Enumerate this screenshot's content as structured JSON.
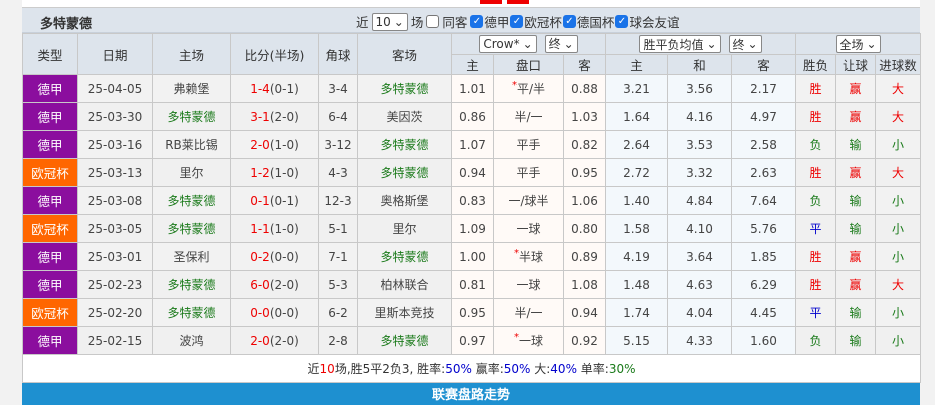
{
  "title": "多特蒙德",
  "filters": {
    "recent_prefix": "近",
    "recent_value": "10",
    "recent_suffix": "场",
    "same_home_label": "同客",
    "same_home_checked": false,
    "leagues": [
      {
        "label": "德甲",
        "checked": true
      },
      {
        "label": "欧冠杯",
        "checked": true
      },
      {
        "label": "德国杯",
        "checked": true
      },
      {
        "label": "球会友谊",
        "checked": true
      }
    ]
  },
  "headers": {
    "type": "类型",
    "date": "日期",
    "home": "主场",
    "score": "比分(半场)",
    "corner": "角球",
    "away": "客场",
    "ah_company": "Crow*",
    "ah_stage": "终",
    "eu_company": "胜平负均值",
    "eu_stage": "终",
    "scope": "全场",
    "sub": [
      "主",
      "盘口",
      "客",
      "主",
      "和",
      "客",
      "胜负",
      "让球",
      "进球数"
    ]
  },
  "colors": {
    "德甲": "#8b0e9e",
    "欧冠杯": "#ff6600",
    "team": "#1a7a1a",
    "red": "#e00000",
    "blue": "#0000cc"
  },
  "rows": [
    {
      "type": "德甲",
      "date": "25-04-05",
      "home": "弗赖堡",
      "score": "1-4",
      "half": "(0-1)",
      "corner": "3-4",
      "away": "多特蒙德",
      "ah_h": "1.01",
      "ah_line": "平/半",
      "ah_star": true,
      "ah_a": "0.88",
      "eu_h": "3.21",
      "eu_d": "3.56",
      "eu_a": "2.17",
      "res": "胜",
      "ah_res": "赢",
      "ou": "大"
    },
    {
      "type": "德甲",
      "date": "25-03-30",
      "home": "多特蒙德",
      "score": "3-1",
      "half": "(2-0)",
      "corner": "6-4",
      "away": "美因茨",
      "ah_h": "0.86",
      "ah_line": "半/一",
      "ah_star": false,
      "ah_a": "1.03",
      "eu_h": "1.64",
      "eu_d": "4.16",
      "eu_a": "4.97",
      "res": "胜",
      "ah_res": "赢",
      "ou": "大"
    },
    {
      "type": "德甲",
      "date": "25-03-16",
      "home": "RB莱比锡",
      "score": "2-0",
      "half": "(1-0)",
      "corner": "3-12",
      "away": "多特蒙德",
      "ah_h": "1.07",
      "ah_line": "平手",
      "ah_star": false,
      "ah_a": "0.82",
      "eu_h": "2.64",
      "eu_d": "3.53",
      "eu_a": "2.58",
      "res": "负",
      "ah_res": "输",
      "ou": "小"
    },
    {
      "type": "欧冠杯",
      "date": "25-03-13",
      "home": "里尔",
      "score": "1-2",
      "half": "(1-0)",
      "corner": "4-3",
      "away": "多特蒙德",
      "ah_h": "0.94",
      "ah_line": "平手",
      "ah_star": false,
      "ah_a": "0.95",
      "eu_h": "2.72",
      "eu_d": "3.32",
      "eu_a": "2.63",
      "res": "胜",
      "ah_res": "赢",
      "ou": "大"
    },
    {
      "type": "德甲",
      "date": "25-03-08",
      "home": "多特蒙德",
      "score": "0-1",
      "half": "(0-1)",
      "corner": "12-3",
      "away": "奥格斯堡",
      "ah_h": "0.83",
      "ah_line": "一/球半",
      "ah_star": false,
      "ah_a": "1.06",
      "eu_h": "1.40",
      "eu_d": "4.84",
      "eu_a": "7.64",
      "res": "负",
      "ah_res": "输",
      "ou": "小"
    },
    {
      "type": "欧冠杯",
      "date": "25-03-05",
      "home": "多特蒙德",
      "score": "1-1",
      "half": "(1-0)",
      "corner": "5-1",
      "away": "里尔",
      "ah_h": "1.09",
      "ah_line": "一球",
      "ah_star": false,
      "ah_a": "0.80",
      "eu_h": "1.58",
      "eu_d": "4.10",
      "eu_a": "5.76",
      "res": "平",
      "ah_res": "输",
      "ou": "小"
    },
    {
      "type": "德甲",
      "date": "25-03-01",
      "home": "圣保利",
      "score": "0-2",
      "half": "(0-0)",
      "corner": "7-1",
      "away": "多特蒙德",
      "ah_h": "1.00",
      "ah_line": "半球",
      "ah_star": true,
      "ah_a": "0.89",
      "eu_h": "4.19",
      "eu_d": "3.64",
      "eu_a": "1.85",
      "res": "胜",
      "ah_res": "赢",
      "ou": "小"
    },
    {
      "type": "德甲",
      "date": "25-02-23",
      "home": "多特蒙德",
      "score": "6-0",
      "half": "(2-0)",
      "corner": "5-3",
      "away": "柏林联合",
      "ah_h": "0.81",
      "ah_line": "一球",
      "ah_star": false,
      "ah_a": "1.08",
      "eu_h": "1.48",
      "eu_d": "4.63",
      "eu_a": "6.29",
      "res": "胜",
      "ah_res": "赢",
      "ou": "大"
    },
    {
      "type": "欧冠杯",
      "date": "25-02-20",
      "home": "多特蒙德",
      "score": "0-0",
      "half": "(0-0)",
      "corner": "6-2",
      "away": "里斯本竞技",
      "ah_h": "0.95",
      "ah_line": "半/一",
      "ah_star": false,
      "ah_a": "0.94",
      "eu_h": "1.74",
      "eu_d": "4.04",
      "eu_a": "4.45",
      "res": "平",
      "ah_res": "输",
      "ou": "小"
    },
    {
      "type": "德甲",
      "date": "25-02-15",
      "home": "波鸿",
      "score": "2-0",
      "half": "(2-0)",
      "corner": "2-8",
      "away": "多特蒙德",
      "ah_h": "0.97",
      "ah_line": "一球",
      "ah_star": true,
      "ah_a": "0.92",
      "eu_h": "5.15",
      "eu_d": "4.33",
      "eu_a": "1.60",
      "res": "负",
      "ah_res": "输",
      "ou": "小"
    }
  ],
  "summary": {
    "p1": "近",
    "n": "10",
    "p2": "场,胜5平2负3, 胜率:",
    "win": "50%",
    "p3": " 赢率:",
    "ahwin": "50%",
    "p4": " 大:",
    "big": "40%",
    "p5": " 单率:",
    "odd": "30%"
  },
  "band_title": "联赛盘路走势"
}
